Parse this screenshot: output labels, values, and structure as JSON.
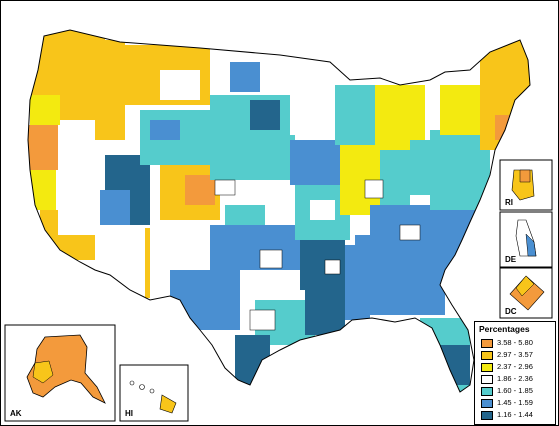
{
  "colors": {
    "c1": "#f39a3c",
    "c2": "#f8c51a",
    "c3": "#f3ea10",
    "c4": "#ffffff",
    "c5": "#55cccc",
    "c6": "#4a8fd1",
    "c7": "#23658c",
    "outline": "#000000"
  },
  "insets": {
    "ak": "AK",
    "hi": "HI",
    "ri": "RI",
    "de": "DE",
    "dc": "DC"
  },
  "legend": {
    "title": "Percentages",
    "items": [
      {
        "label": "3.58 - 5.80",
        "color": "#f39a3c"
      },
      {
        "label": "2.97 - 3.57",
        "color": "#f8c51a"
      },
      {
        "label": "2.37 - 2.96",
        "color": "#f3ea10"
      },
      {
        "label": "1.86 - 2.36",
        "color": "#ffffff"
      },
      {
        "label": "1.60 - 1.85",
        "color": "#55cccc"
      },
      {
        "label": "1.45 - 1.59",
        "color": "#4a8fd1"
      },
      {
        "label": "1.16 - 1.44",
        "color": "#23658c"
      }
    ]
  }
}
